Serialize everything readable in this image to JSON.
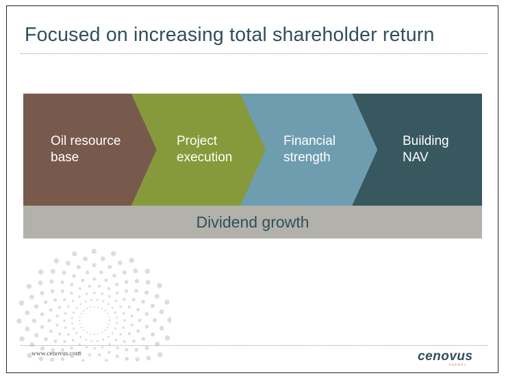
{
  "slide": {
    "title": "Focused on increasing total shareholder return",
    "steps": [
      {
        "line1": "Oil resource",
        "line2": "base",
        "color": "#785a4d"
      },
      {
        "line1": "Project",
        "line2": "execution",
        "color": "#869a3b"
      },
      {
        "line1": "Financial",
        "line2": "strength",
        "color": "#6f9db0"
      },
      {
        "line1": "Building",
        "line2": "NAV",
        "color": "#385860"
      }
    ],
    "band_label": "Dividend growth",
    "footer_url": "www.cenovus.com",
    "logo_text": "cenovus",
    "logo_subtext": "ENERGY"
  }
}
